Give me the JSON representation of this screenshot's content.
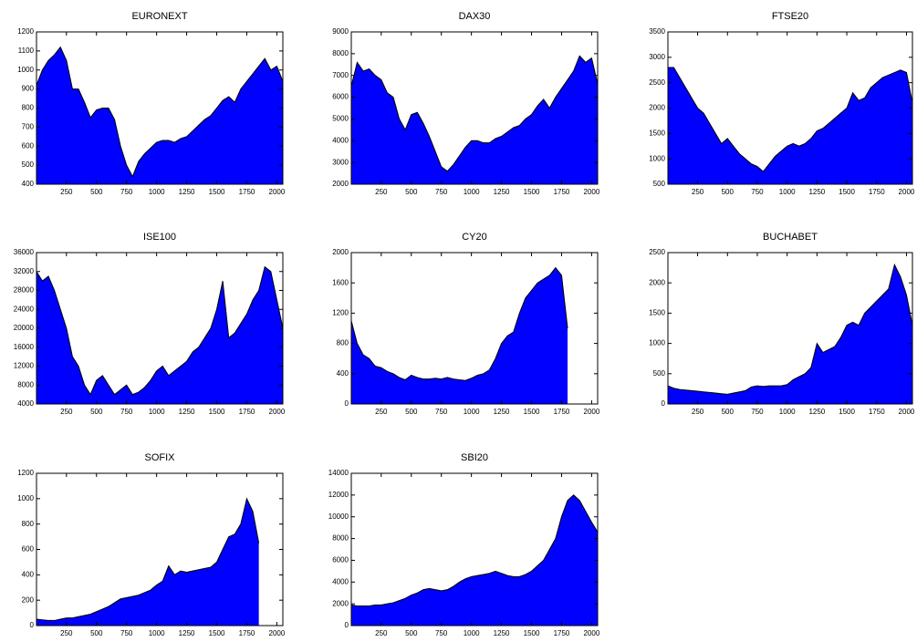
{
  "chart_data": [
    {
      "type": "area",
      "title": "EURONEXT",
      "color": "#0000ff",
      "line_color": "#000000",
      "x": [
        1,
        50,
        100,
        150,
        200,
        250,
        300,
        350,
        400,
        450,
        500,
        550,
        600,
        650,
        700,
        750,
        800,
        850,
        900,
        950,
        1000,
        1050,
        1100,
        1150,
        1200,
        1250,
        1300,
        1350,
        1400,
        1450,
        1500,
        1550,
        1600,
        1650,
        1700,
        1750,
        1800,
        1850,
        1900,
        1950,
        2000,
        2050
      ],
      "values": [
        920,
        1000,
        1050,
        1080,
        1120,
        1050,
        900,
        900,
        830,
        750,
        790,
        800,
        800,
        740,
        600,
        500,
        440,
        520,
        560,
        590,
        620,
        630,
        630,
        620,
        640,
        650,
        680,
        710,
        740,
        760,
        800,
        840,
        860,
        830,
        900,
        940,
        980,
        1020,
        1060,
        1000,
        1020,
        940
      ],
      "xlim": [
        1,
        2050
      ],
      "xticks": [
        250,
        500,
        750,
        1000,
        1250,
        1500,
        1750,
        2000
      ],
      "ylim": [
        400,
        1200
      ],
      "yticks": [
        400,
        500,
        600,
        700,
        800,
        900,
        1000,
        1100,
        1200
      ]
    },
    {
      "type": "area",
      "title": "DAX30",
      "color": "#0000ff",
      "line_color": "#000000",
      "x": [
        1,
        50,
        100,
        150,
        200,
        250,
        300,
        350,
        400,
        450,
        500,
        550,
        600,
        650,
        700,
        750,
        800,
        850,
        900,
        950,
        1000,
        1050,
        1100,
        1150,
        1200,
        1250,
        1300,
        1350,
        1400,
        1450,
        1500,
        1550,
        1600,
        1650,
        1700,
        1750,
        1800,
        1850,
        1900,
        1950,
        2000,
        2050
      ],
      "values": [
        6500,
        7600,
        7200,
        7300,
        7000,
        6800,
        6200,
        6000,
        5000,
        4500,
        5200,
        5300,
        4800,
        4200,
        3500,
        2800,
        2600,
        2900,
        3300,
        3700,
        4000,
        4000,
        3900,
        3900,
        4100,
        4200,
        4400,
        4600,
        4700,
        5000,
        5200,
        5600,
        5900,
        5500,
        6000,
        6400,
        6800,
        7200,
        7900,
        7600,
        7800,
        6600
      ],
      "xlim": [
        1,
        2050
      ],
      "xticks": [
        250,
        500,
        750,
        1000,
        1250,
        1500,
        1750,
        2000
      ],
      "ylim": [
        2000,
        9000
      ],
      "yticks": [
        2000,
        3000,
        4000,
        5000,
        6000,
        7000,
        8000,
        9000
      ]
    },
    {
      "type": "area",
      "title": "FTSE20",
      "color": "#0000ff",
      "line_color": "#000000",
      "x": [
        1,
        50,
        100,
        150,
        200,
        250,
        300,
        350,
        400,
        450,
        500,
        550,
        600,
        650,
        700,
        750,
        800,
        850,
        900,
        950,
        1000,
        1050,
        1100,
        1150,
        1200,
        1250,
        1300,
        1350,
        1400,
        1450,
        1500,
        1550,
        1600,
        1650,
        1700,
        1750,
        1800,
        1850,
        1900,
        1950,
        2000,
        2050
      ],
      "values": [
        2800,
        2800,
        2600,
        2400,
        2200,
        2000,
        1900,
        1700,
        1500,
        1300,
        1400,
        1250,
        1100,
        1000,
        900,
        850,
        750,
        900,
        1050,
        1150,
        1250,
        1300,
        1250,
        1300,
        1400,
        1550,
        1600,
        1700,
        1800,
        1900,
        2000,
        2300,
        2150,
        2200,
        2400,
        2500,
        2600,
        2650,
        2700,
        2750,
        2700,
        2100
      ],
      "xlim": [
        1,
        2050
      ],
      "xticks": [
        250,
        500,
        750,
        1000,
        1250,
        1500,
        1750,
        2000
      ],
      "ylim": [
        500,
        3500
      ],
      "yticks": [
        500,
        1000,
        1500,
        2000,
        2500,
        3000,
        3500
      ]
    },
    {
      "type": "area",
      "title": "ISE100",
      "color": "#0000ff",
      "line_color": "#000000",
      "x": [
        1,
        50,
        100,
        150,
        200,
        250,
        300,
        350,
        400,
        450,
        500,
        550,
        600,
        650,
        700,
        750,
        800,
        850,
        900,
        950,
        1000,
        1050,
        1100,
        1150,
        1200,
        1250,
        1300,
        1350,
        1400,
        1450,
        1500,
        1550,
        1600,
        1650,
        1700,
        1750,
        1800,
        1850,
        1900,
        1950,
        2000,
        2050
      ],
      "values": [
        32000,
        30000,
        31000,
        28000,
        24000,
        20000,
        14000,
        12000,
        8000,
        6000,
        9000,
        10000,
        8000,
        6000,
        7000,
        8000,
        6000,
        6500,
        7500,
        9000,
        11000,
        12000,
        10000,
        11000,
        12000,
        13000,
        15000,
        16000,
        18000,
        20000,
        24000,
        30000,
        18000,
        19000,
        21000,
        23000,
        26000,
        28000,
        33000,
        32000,
        26000,
        20000
      ],
      "xlim": [
        1,
        2050
      ],
      "xticks": [
        250,
        500,
        750,
        1000,
        1250,
        1500,
        1750,
        2000
      ],
      "ylim": [
        4000,
        36000
      ],
      "yticks": [
        4000,
        8000,
        12000,
        16000,
        20000,
        24000,
        28000,
        32000,
        36000
      ]
    },
    {
      "type": "area",
      "title": "CY20",
      "color": "#0000ff",
      "line_color": "#000000",
      "x": [
        1,
        50,
        100,
        150,
        200,
        250,
        300,
        350,
        400,
        450,
        500,
        550,
        600,
        650,
        700,
        750,
        800,
        850,
        900,
        950,
        1000,
        1050,
        1100,
        1150,
        1200,
        1250,
        1300,
        1350,
        1400,
        1450,
        1500,
        1550,
        1600,
        1650,
        1700,
        1750,
        1800,
        1850,
        1900,
        1950,
        2000,
        2050
      ],
      "values": [
        1100,
        800,
        650,
        600,
        500,
        480,
        430,
        400,
        350,
        320,
        380,
        350,
        330,
        330,
        340,
        330,
        350,
        330,
        320,
        310,
        340,
        380,
        400,
        450,
        600,
        800,
        900,
        950,
        1200,
        1400,
        1500,
        1600,
        1650,
        1700,
        1800,
        1700,
        1000,
        null,
        null,
        null,
        null,
        null
      ],
      "xlim": [
        1,
        2050
      ],
      "xticks": [
        250,
        500,
        750,
        1000,
        1250,
        1500,
        1750,
        2000
      ],
      "ylim": [
        0,
        2000
      ],
      "yticks": [
        0,
        400,
        800,
        1200,
        1600,
        2000
      ]
    },
    {
      "type": "area",
      "title": "BUCHABET",
      "color": "#0000ff",
      "line_color": "#000000",
      "x": [
        1,
        50,
        100,
        150,
        200,
        250,
        300,
        350,
        400,
        450,
        500,
        550,
        600,
        650,
        700,
        750,
        800,
        850,
        900,
        950,
        1000,
        1050,
        1100,
        1150,
        1200,
        1250,
        1300,
        1350,
        1400,
        1450,
        1500,
        1550,
        1600,
        1650,
        1700,
        1750,
        1800,
        1850,
        1900,
        1950,
        2000,
        2050
      ],
      "values": [
        300,
        260,
        240,
        230,
        220,
        210,
        200,
        190,
        180,
        170,
        160,
        180,
        200,
        220,
        280,
        300,
        290,
        300,
        300,
        300,
        320,
        400,
        450,
        500,
        600,
        1000,
        850,
        900,
        950,
        1100,
        1300,
        1350,
        1300,
        1500,
        1600,
        1700,
        1800,
        1900,
        2300,
        2100,
        1800,
        1300
      ],
      "xlim": [
        1,
        2050
      ],
      "xticks": [
        250,
        500,
        750,
        1000,
        1250,
        1500,
        1750,
        2000
      ],
      "ylim": [
        0,
        2500
      ],
      "yticks": [
        0,
        500,
        1000,
        1500,
        2000,
        2500
      ]
    },
    {
      "type": "area",
      "title": "SOFIX",
      "color": "#0000ff",
      "line_color": "#000000",
      "x": [
        1,
        50,
        100,
        150,
        200,
        250,
        300,
        350,
        400,
        450,
        500,
        550,
        600,
        650,
        700,
        750,
        800,
        850,
        900,
        950,
        1000,
        1050,
        1100,
        1150,
        1200,
        1250,
        1300,
        1350,
        1400,
        1450,
        1500,
        1550,
        1600,
        1650,
        1700,
        1750,
        1800,
        1850,
        1900,
        1950,
        2000,
        2050
      ],
      "values": [
        50,
        45,
        40,
        40,
        50,
        60,
        60,
        70,
        80,
        90,
        110,
        130,
        150,
        180,
        210,
        220,
        230,
        240,
        260,
        280,
        320,
        350,
        470,
        400,
        430,
        420,
        430,
        440,
        450,
        460,
        500,
        600,
        700,
        720,
        800,
        1000,
        900,
        650,
        null,
        null,
        null,
        null
      ],
      "xlim": [
        1,
        2050
      ],
      "xticks": [
        250,
        500,
        750,
        1000,
        1250,
        1500,
        1750,
        2000
      ],
      "ylim": [
        0,
        1200
      ],
      "yticks": [
        0,
        200,
        400,
        600,
        800,
        1000,
        1200
      ]
    },
    {
      "type": "area",
      "title": "SBI20",
      "color": "#0000ff",
      "line_color": "#000000",
      "x": [
        1,
        50,
        100,
        150,
        200,
        250,
        300,
        350,
        400,
        450,
        500,
        550,
        600,
        650,
        700,
        750,
        800,
        850,
        900,
        950,
        1000,
        1050,
        1100,
        1150,
        1200,
        1250,
        1300,
        1350,
        1400,
        1450,
        1500,
        1550,
        1600,
        1650,
        1700,
        1750,
        1800,
        1850,
        1900,
        1950,
        2000,
        2050
      ],
      "values": [
        1900,
        1800,
        1800,
        1800,
        1900,
        1900,
        2000,
        2100,
        2300,
        2500,
        2800,
        3000,
        3300,
        3400,
        3300,
        3200,
        3300,
        3600,
        4000,
        4300,
        4500,
        4600,
        4700,
        4800,
        5000,
        4800,
        4600,
        4500,
        4500,
        4700,
        5000,
        5500,
        6000,
        7000,
        8000,
        10000,
        11500,
        12000,
        11500,
        10500,
        9500,
        8600
      ],
      "xlim": [
        1,
        2050
      ],
      "xticks": [
        250,
        500,
        750,
        1000,
        1250,
        1500,
        1750,
        2000
      ],
      "ylim": [
        0,
        14000
      ],
      "yticks": [
        0,
        2000,
        4000,
        6000,
        8000,
        10000,
        12000,
        14000
      ]
    }
  ]
}
